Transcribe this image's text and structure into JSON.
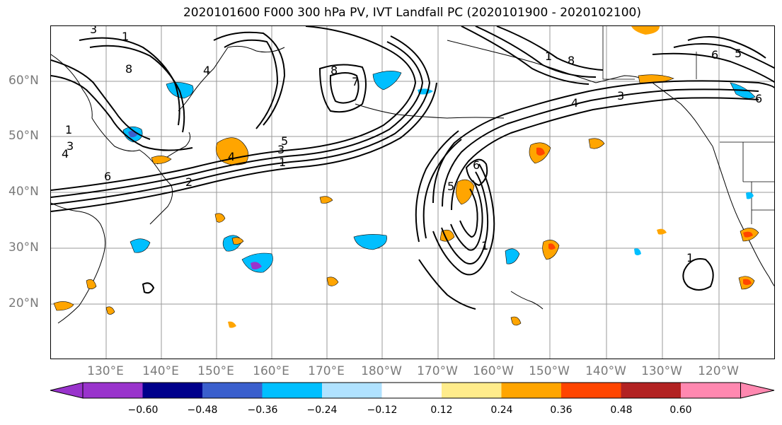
{
  "title": "2020101600 F000 300 hPa PV, IVT Landfall PC (2020101900 - 2020102100)",
  "lat_labels": [
    "60°N",
    "50°N",
    "40°N",
    "30°N",
    "20°N"
  ],
  "lon_labels": [
    "130°E",
    "140°E",
    "150°E",
    "160°E",
    "170°E",
    "180°W",
    "170°W",
    "160°W",
    "150°W",
    "140°W",
    "130°W",
    "120°W"
  ],
  "colorbar": {
    "ticks": [
      "−0.60",
      "−0.48",
      "−0.36",
      "−0.24",
      "−0.12",
      "0.12",
      "0.24",
      "0.36",
      "0.48",
      "0.60"
    ],
    "colors": [
      "#9933cc",
      "#00008b",
      "#3a5fcd",
      "#00bfff",
      "#b0e2ff",
      "#ffffff",
      "#ffec8b",
      "#ffa500",
      "#ff4500",
      "#b22222",
      "#ff88b0"
    ]
  },
  "contour_labels": [
    "1",
    "2",
    "3",
    "4",
    "5",
    "6",
    "7",
    "8"
  ],
  "colors": {
    "contour": "#000000",
    "grid": "#9a9a9a",
    "coast": "#000000",
    "axis_label": "#7a7a7a"
  }
}
